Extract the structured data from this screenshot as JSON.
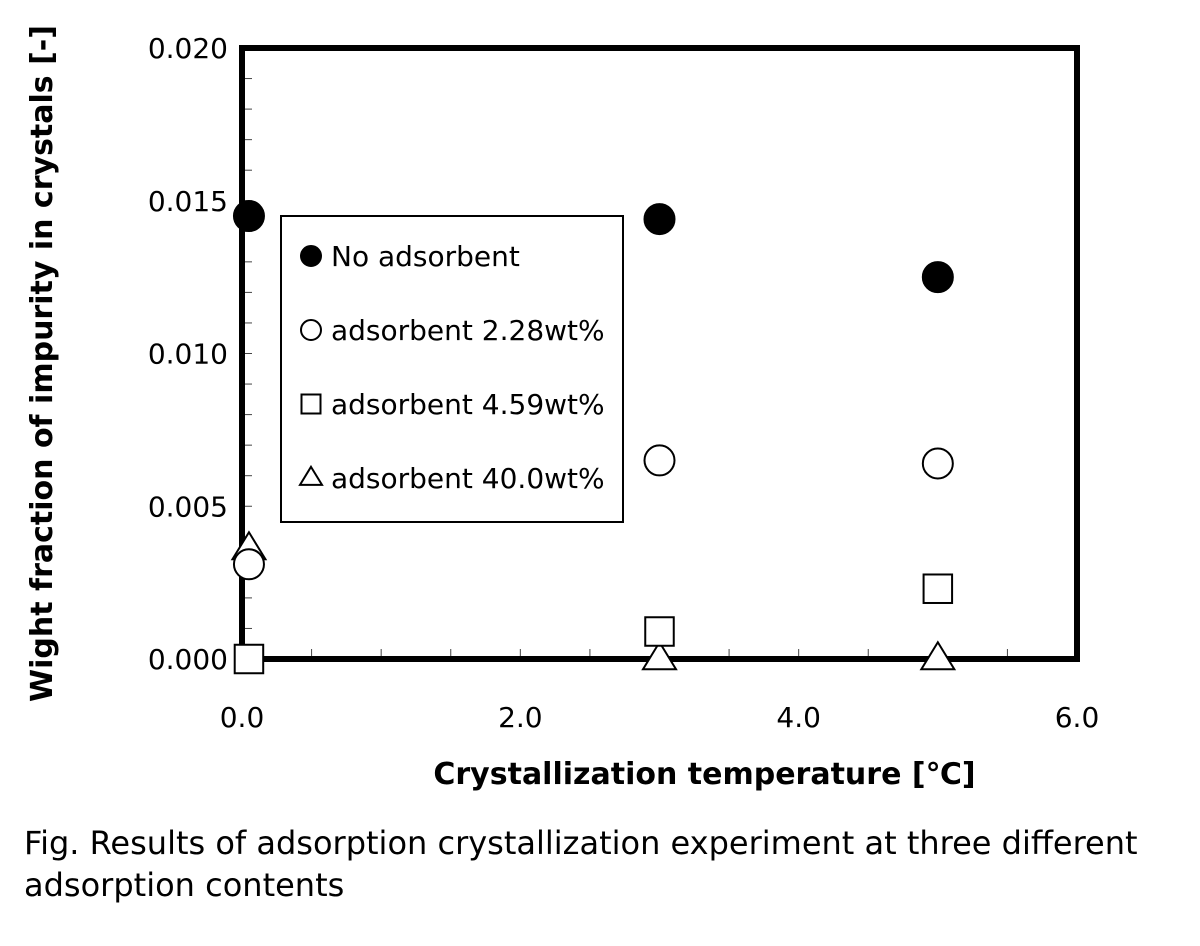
{
  "chart_data": {
    "type": "scatter",
    "xlabel": "Crystallization temperature [℃]",
    "ylabel": "Wight fraction of impurity in crystals [-]",
    "xlim": [
      0,
      6
    ],
    "ylim": [
      0,
      0.02
    ],
    "x_ticks": [
      "0.0",
      "2.0",
      "4.0",
      "6.0"
    ],
    "y_ticks": [
      "0.000",
      "0.005",
      "0.010",
      "0.015",
      "0.020"
    ],
    "legend_position": "center-left",
    "series": [
      {
        "name": "No adsorbent",
        "marker": "filled-circle",
        "points": [
          {
            "x": 0.05,
            "y": 0.0145
          },
          {
            "x": 3.0,
            "y": 0.0144
          },
          {
            "x": 5.0,
            "y": 0.0125
          }
        ]
      },
      {
        "name": "adsorbent 2.28wt%",
        "marker": "open-circle",
        "points": [
          {
            "x": 0.05,
            "y": 0.0031
          },
          {
            "x": 3.0,
            "y": 0.0065
          },
          {
            "x": 5.0,
            "y": 0.0064
          }
        ]
      },
      {
        "name": "adsorbent 4.59wt%",
        "marker": "open-square",
        "points": [
          {
            "x": 0.05,
            "y": 0.0
          },
          {
            "x": 3.0,
            "y": 0.0009
          },
          {
            "x": 5.0,
            "y": 0.0023
          }
        ]
      },
      {
        "name": "adsorbent 40.0wt%",
        "marker": "open-triangle",
        "points": [
          {
            "x": 0.05,
            "y": 0.0036
          },
          {
            "x": 3.0,
            "y": 0.0
          },
          {
            "x": 5.0,
            "y": 0.0
          }
        ]
      }
    ]
  },
  "caption": "Fig. Results of adsorption crystallization experiment at three different adsorption contents"
}
